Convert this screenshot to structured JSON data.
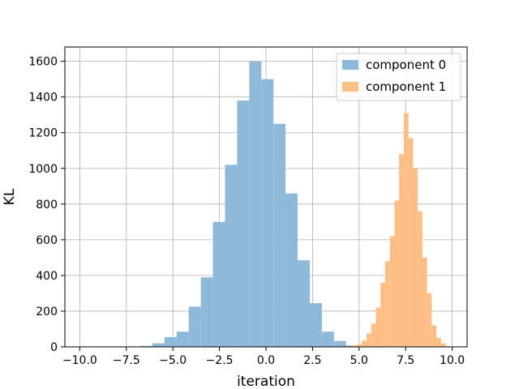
{
  "chart_data": {
    "type": "histogram",
    "xlabel": "iteration",
    "ylabel": "KL",
    "xlim": [
      -10.8,
      10.8
    ],
    "ylim": [
      0,
      1680
    ],
    "xticks": [
      -10.0,
      -7.5,
      -5.0,
      -2.5,
      0.0,
      2.5,
      5.0,
      7.5,
      10.0
    ],
    "xtick_labels": [
      "−10.0",
      "−7.5",
      "−5.0",
      "−2.5",
      "0.0",
      "2.5",
      "5.0",
      "7.5",
      "10.0"
    ],
    "yticks": [
      0,
      200,
      400,
      600,
      800,
      1000,
      1200,
      1400,
      1600
    ],
    "ytick_labels": [
      "0",
      "200",
      "400",
      "600",
      "800",
      "1000",
      "1200",
      "1400",
      "1600"
    ],
    "grid": true,
    "legend_position": "top-right",
    "series": [
      {
        "name": "component 0",
        "color": "#8fb9d9",
        "bin_edges": [
          -10.0,
          -9.35,
          -8.7,
          -8.05,
          -7.4,
          -6.75,
          -6.1,
          -5.45,
          -4.8,
          -4.15,
          -3.5,
          -2.85,
          -2.2,
          -1.55,
          -0.9,
          -0.25,
          0.4,
          1.05,
          1.7,
          2.35,
          3.0,
          3.65,
          4.3,
          4.95
        ],
        "counts": [
          1,
          1,
          1,
          1,
          2,
          5,
          20,
          55,
          85,
          225,
          390,
          700,
          1020,
          1380,
          1600,
          1500,
          1250,
          860,
          485,
          245,
          85,
          33,
          8
        ]
      },
      {
        "name": "component 1",
        "color": "#fdbf86",
        "bin_edges": [
          4.4,
          4.65,
          4.9,
          5.15,
          5.4,
          5.65,
          5.9,
          6.15,
          6.4,
          6.65,
          6.9,
          7.15,
          7.4,
          7.65,
          7.9,
          8.15,
          8.4,
          8.65,
          8.9,
          9.15,
          9.4,
          9.65,
          9.9,
          10.15
        ],
        "counts": [
          3,
          8,
          15,
          35,
          75,
          130,
          220,
          360,
          480,
          620,
          820,
          1080,
          1310,
          1170,
          1000,
          760,
          500,
          300,
          120,
          50,
          20,
          5,
          1
        ]
      }
    ]
  }
}
